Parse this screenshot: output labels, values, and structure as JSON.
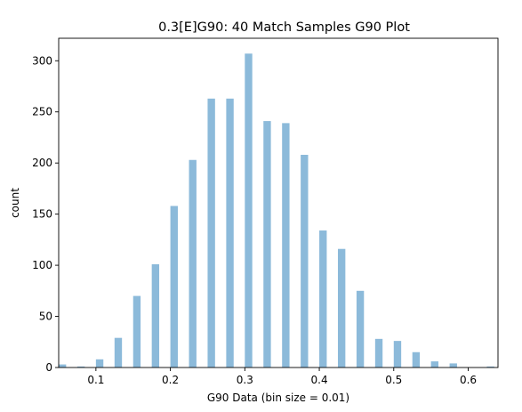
{
  "chart_data": {
    "type": "bar",
    "title": "0.3[E]G90: 40 Match Samples G90 Plot",
    "xlabel": "G90 Data (bin size = 0.01)",
    "ylabel": "count",
    "xlim": [
      0.05,
      0.64
    ],
    "ylim": [
      0,
      322
    ],
    "bin_size": 0.01,
    "bar_color": "#8cbada",
    "grid": false,
    "legend": "none",
    "x_ticks": [
      0.1,
      0.2,
      0.3,
      0.4,
      0.5,
      0.6
    ],
    "x_tick_labels": [
      "0.1",
      "0.2",
      "0.3",
      "0.4",
      "0.5",
      "0.6"
    ],
    "y_ticks": [
      0,
      50,
      100,
      150,
      200,
      250,
      300
    ],
    "y_tick_labels": [
      "0",
      "50",
      "100",
      "150",
      "200",
      "250",
      "300"
    ],
    "bins": [
      {
        "x": 0.05,
        "count": 3
      },
      {
        "x": 0.075,
        "count": 1
      },
      {
        "x": 0.1,
        "count": 8
      },
      {
        "x": 0.125,
        "count": 29
      },
      {
        "x": 0.15,
        "count": 70
      },
      {
        "x": 0.175,
        "count": 101
      },
      {
        "x": 0.2,
        "count": 158
      },
      {
        "x": 0.225,
        "count": 203
      },
      {
        "x": 0.25,
        "count": 263
      },
      {
        "x": 0.275,
        "count": 263
      },
      {
        "x": 0.3,
        "count": 307
      },
      {
        "x": 0.325,
        "count": 241
      },
      {
        "x": 0.35,
        "count": 239
      },
      {
        "x": 0.375,
        "count": 208
      },
      {
        "x": 0.4,
        "count": 134
      },
      {
        "x": 0.425,
        "count": 116
      },
      {
        "x": 0.45,
        "count": 75
      },
      {
        "x": 0.475,
        "count": 28
      },
      {
        "x": 0.5,
        "count": 26
      },
      {
        "x": 0.525,
        "count": 15
      },
      {
        "x": 0.55,
        "count": 6
      },
      {
        "x": 0.575,
        "count": 4
      },
      {
        "x": 0.625,
        "count": 1
      }
    ]
  }
}
